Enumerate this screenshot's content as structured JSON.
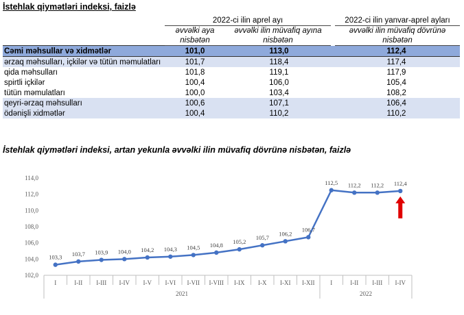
{
  "table": {
    "title": "İstehlak qiymətləri indeksi, faizlə",
    "period1": "2022-ci ilin aprel ayı",
    "period2": "2022-ci ilin yanvar-aprel ayları",
    "sub1": "əvvəlki aya nisbətən",
    "sub2": "əvvəlki ilin müvafiq ayına nisbətən",
    "sub3": "əvvəlki ilin müvafiq dövrünə nisbətən",
    "rows": [
      {
        "label": "Cəmi məhsullar və xidmətlər",
        "v1": "101,0",
        "v2": "113,0",
        "v3": "112,4"
      },
      {
        "label": "ərzaq məhsulları, içkilər və tütün məmulatları",
        "v1": "101,7",
        "v2": "118,4",
        "v3": "117,4"
      },
      {
        "label": "qida məhsulları",
        "v1": "101,8",
        "v2": "119,1",
        "v3": "117,9"
      },
      {
        "label": "spirtli içkilər",
        "v1": "100,4",
        "v2": "106,0",
        "v3": "105,4"
      },
      {
        "label": "tütün məmulatları",
        "v1": "100,0",
        "v2": "103,4",
        "v3": "108,2"
      },
      {
        "label": "qeyri-ərzaq məhsulları",
        "v1": "100,6",
        "v2": "107,1",
        "v3": "106,4"
      },
      {
        "label": "ödənişli xidmətlər",
        "v1": "100,4",
        "v2": "110,2",
        "v3": "110,2"
      }
    ]
  },
  "chart_data": {
    "type": "line",
    "title": "İstehlak qiymətləri indeksi, artan yekunla əvvəlki ilin müvafiq dövrünə nisbətən, faizlə",
    "categories": [
      "I",
      "I-II",
      "I-III",
      "I-IV",
      "I-V",
      "I-VI",
      "I-VII",
      "I-VIII",
      "I-IX",
      "I-X",
      "I-XI",
      "I-XII",
      "I",
      "I-II",
      "I-III",
      "I-IV"
    ],
    "category_labels": [
      "I",
      "I-II",
      "I-III",
      "I-IV",
      "I-V",
      "I-VI",
      "I-VII",
      "I-VIII",
      "I-IX",
      "I-X",
      "I-XI",
      "I-XII",
      "I",
      "I-II",
      "I-III",
      "I-IV"
    ],
    "groups": [
      {
        "label": "2021",
        "count": 12
      },
      {
        "label": "2022",
        "count": 4
      }
    ],
    "values": [
      103.3,
      103.7,
      103.9,
      104.0,
      104.2,
      104.3,
      104.5,
      104.8,
      105.2,
      105.7,
      106.2,
      106.7,
      112.5,
      112.2,
      112.2,
      112.4
    ],
    "value_labels": [
      "103,3",
      "103,7",
      "103,9",
      "104,0",
      "104,2",
      "104,3",
      "104,5",
      "104,8",
      "105,2",
      "105,7",
      "106,2",
      "106,7",
      "112,5",
      "112,2",
      "112,2",
      "112,4"
    ],
    "ylim": [
      102.0,
      114.0
    ],
    "yticks": [
      102.0,
      104.0,
      106.0,
      108.0,
      110.0,
      112.0,
      114.0
    ],
    "ytick_labels": [
      "102,0",
      "104,0",
      "106,0",
      "108,0",
      "110,0",
      "112,0",
      "114,0"
    ],
    "grid": false,
    "line_color": "#4472c4",
    "arrow_color": "#e00000",
    "arrow_index": 15
  }
}
